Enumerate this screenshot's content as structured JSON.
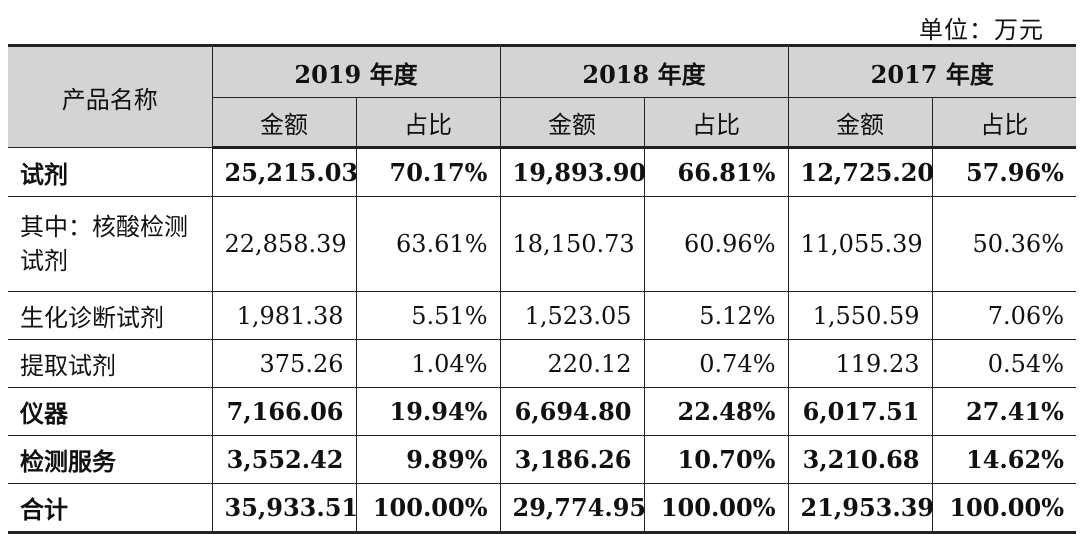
{
  "unit_label": "单位：万元",
  "header": {
    "product_name": "产品名称",
    "years": [
      "2019 年度",
      "2018 年度",
      "2017 年度"
    ],
    "amount": "金额",
    "ratio": "占比"
  },
  "rows": [
    {
      "name": "试剂",
      "bold": true,
      "cells": [
        "25,215.03",
        "70.17%",
        "19,893.90",
        "66.81%",
        "12,725.20",
        "57.96%"
      ]
    },
    {
      "name": "其中：核酸检测试剂",
      "bold": false,
      "cells": [
        "22,858.39",
        "63.61%",
        "18,150.73",
        "60.96%",
        "11,055.39",
        "50.36%"
      ]
    },
    {
      "name": "生化诊断试剂",
      "bold": false,
      "cells": [
        "1,981.38",
        "5.51%",
        "1,523.05",
        "5.12%",
        "1,550.59",
        "7.06%"
      ]
    },
    {
      "name": "提取试剂",
      "bold": false,
      "cells": [
        "375.26",
        "1.04%",
        "220.12",
        "0.74%",
        "119.23",
        "0.54%"
      ]
    },
    {
      "name": "仪器",
      "bold": true,
      "cells": [
        "7,166.06",
        "19.94%",
        "6,694.80",
        "22.48%",
        "6,017.51",
        "27.41%"
      ]
    },
    {
      "name": "检测服务",
      "bold": true,
      "cells": [
        "3,552.42",
        "9.89%",
        "3,186.26",
        "10.70%",
        "3,210.68",
        "14.62%"
      ]
    },
    {
      "name": "合计",
      "bold": true,
      "cells": [
        "35,933.51",
        "100.00%",
        "29,774.95",
        "100.00%",
        "21,953.39",
        "100.00%"
      ]
    }
  ]
}
